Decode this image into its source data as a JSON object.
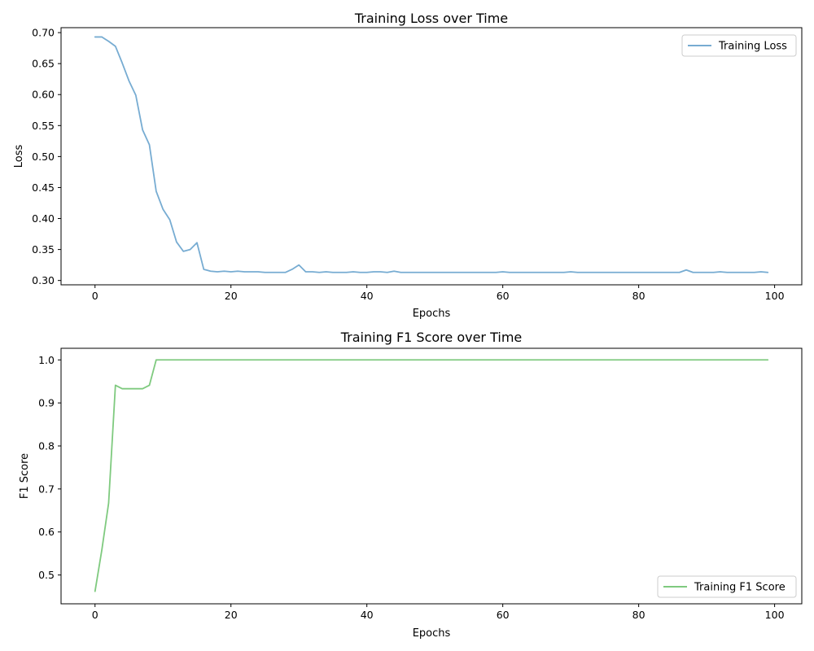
{
  "colors": {
    "loss_line": "#77acd2",
    "f1_line": "#7fca7f"
  },
  "chart_data": [
    {
      "type": "line",
      "title": "Training Loss over Time",
      "xlabel": "Epochs",
      "ylabel": "Loss",
      "xlim": [
        -5,
        104
      ],
      "ylim": [
        0.293,
        0.708
      ],
      "xticks": [
        0,
        20,
        40,
        60,
        80,
        100
      ],
      "xtick_labels": [
        "0",
        "20",
        "40",
        "60",
        "80",
        "100"
      ],
      "yticks": [
        0.3,
        0.35,
        0.4,
        0.45,
        0.5,
        0.55,
        0.6,
        0.65,
        0.7
      ],
      "ytick_labels": [
        "0.30",
        "0.35",
        "0.40",
        "0.45",
        "0.50",
        "0.55",
        "0.60",
        "0.65",
        "0.70"
      ],
      "grid": false,
      "legend_position": "upper-right",
      "series": [
        {
          "name": "Training Loss",
          "color": "#77acd2",
          "x": [
            0,
            1,
            2,
            3,
            4,
            5,
            6,
            7,
            8,
            9,
            10,
            11,
            12,
            13,
            14,
            15,
            16,
            17,
            18,
            19,
            20,
            21,
            22,
            23,
            24,
            25,
            26,
            27,
            28,
            29,
            30,
            31,
            32,
            33,
            34,
            35,
            36,
            37,
            38,
            39,
            40,
            41,
            42,
            43,
            44,
            45,
            46,
            47,
            48,
            49,
            50,
            51,
            52,
            53,
            54,
            55,
            56,
            57,
            58,
            59,
            60,
            61,
            62,
            63,
            64,
            65,
            66,
            67,
            68,
            69,
            70,
            71,
            72,
            73,
            74,
            75,
            76,
            77,
            78,
            79,
            80,
            81,
            82,
            83,
            84,
            85,
            86,
            87,
            88,
            89,
            90,
            91,
            92,
            93,
            94,
            95,
            96,
            97,
            98,
            99
          ],
          "values": [
            0.693,
            0.693,
            0.686,
            0.678,
            0.651,
            0.622,
            0.599,
            0.543,
            0.519,
            0.444,
            0.415,
            0.398,
            0.362,
            0.347,
            0.35,
            0.361,
            0.318,
            0.315,
            0.314,
            0.315,
            0.314,
            0.315,
            0.314,
            0.314,
            0.314,
            0.313,
            0.313,
            0.313,
            0.313,
            0.318,
            0.325,
            0.314,
            0.314,
            0.313,
            0.314,
            0.313,
            0.313,
            0.313,
            0.314,
            0.313,
            0.313,
            0.314,
            0.314,
            0.313,
            0.315,
            0.313,
            0.313,
            0.313,
            0.313,
            0.313,
            0.313,
            0.313,
            0.313,
            0.313,
            0.313,
            0.313,
            0.313,
            0.313,
            0.313,
            0.313,
            0.314,
            0.313,
            0.313,
            0.313,
            0.313,
            0.313,
            0.313,
            0.313,
            0.313,
            0.313,
            0.314,
            0.313,
            0.313,
            0.313,
            0.313,
            0.313,
            0.313,
            0.313,
            0.313,
            0.313,
            0.313,
            0.313,
            0.313,
            0.313,
            0.313,
            0.313,
            0.313,
            0.317,
            0.313,
            0.313,
            0.313,
            0.313,
            0.314,
            0.313,
            0.313,
            0.313,
            0.313,
            0.313,
            0.314,
            0.313
          ]
        }
      ]
    },
    {
      "type": "line",
      "title": "Training F1 Score over Time",
      "xlabel": "Epochs",
      "ylabel": "F1 Score",
      "xlim": [
        -5,
        104
      ],
      "ylim": [
        0.433,
        1.027
      ],
      "xticks": [
        0,
        20,
        40,
        60,
        80,
        100
      ],
      "xtick_labels": [
        "0",
        "20",
        "40",
        "60",
        "80",
        "100"
      ],
      "yticks": [
        0.5,
        0.6,
        0.7,
        0.8,
        0.9,
        1.0
      ],
      "ytick_labels": [
        "0.5",
        "0.6",
        "0.7",
        "0.8",
        "0.9",
        "1.0"
      ],
      "grid": false,
      "legend_position": "lower-right",
      "series": [
        {
          "name": "Training F1 Score",
          "color": "#7fca7f",
          "x": [
            0,
            1,
            2,
            3,
            4,
            5,
            6,
            7,
            8,
            9,
            10,
            11,
            12,
            13,
            14,
            15,
            16,
            17,
            18,
            19,
            20,
            21,
            22,
            23,
            24,
            25,
            26,
            27,
            28,
            29,
            30,
            31,
            32,
            33,
            34,
            35,
            36,
            37,
            38,
            39,
            40,
            41,
            42,
            43,
            44,
            45,
            46,
            47,
            48,
            49,
            50,
            51,
            52,
            53,
            54,
            55,
            56,
            57,
            58,
            59,
            60,
            61,
            62,
            63,
            64,
            65,
            66,
            67,
            68,
            69,
            70,
            71,
            72,
            73,
            74,
            75,
            76,
            77,
            78,
            79,
            80,
            81,
            82,
            83,
            84,
            85,
            86,
            87,
            88,
            89,
            90,
            91,
            92,
            93,
            94,
            95,
            96,
            97,
            98,
            99
          ],
          "values": [
            0.462,
            0.558,
            0.667,
            0.941,
            0.933,
            0.933,
            0.933,
            0.933,
            0.941,
            1.0,
            1.0,
            1.0,
            1.0,
            1.0,
            1.0,
            1.0,
            1.0,
            1.0,
            1.0,
            1.0,
            1.0,
            1.0,
            1.0,
            1.0,
            1.0,
            1.0,
            1.0,
            1.0,
            1.0,
            1.0,
            1.0,
            1.0,
            1.0,
            1.0,
            1.0,
            1.0,
            1.0,
            1.0,
            1.0,
            1.0,
            1.0,
            1.0,
            1.0,
            1.0,
            1.0,
            1.0,
            1.0,
            1.0,
            1.0,
            1.0,
            1.0,
            1.0,
            1.0,
            1.0,
            1.0,
            1.0,
            1.0,
            1.0,
            1.0,
            1.0,
            1.0,
            1.0,
            1.0,
            1.0,
            1.0,
            1.0,
            1.0,
            1.0,
            1.0,
            1.0,
            1.0,
            1.0,
            1.0,
            1.0,
            1.0,
            1.0,
            1.0,
            1.0,
            1.0,
            1.0,
            1.0,
            1.0,
            1.0,
            1.0,
            1.0,
            1.0,
            1.0,
            1.0,
            1.0,
            1.0,
            1.0,
            1.0,
            1.0,
            1.0,
            1.0,
            1.0,
            1.0,
            1.0,
            1.0,
            1.0
          ]
        }
      ]
    }
  ]
}
